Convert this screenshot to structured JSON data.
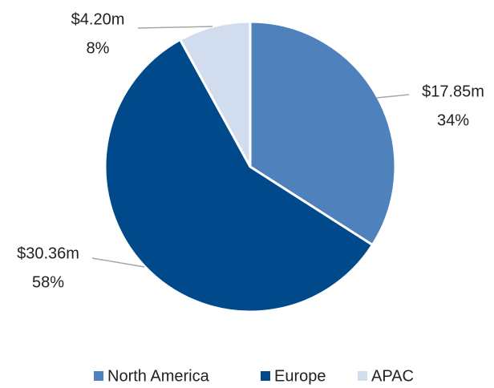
{
  "chart_data": {
    "type": "pie",
    "categories": [
      "North America",
      "Europe",
      "APAC"
    ],
    "values": [
      17.85,
      30.36,
      4.2
    ],
    "value_labels": [
      "$17.85m",
      "$30.36m",
      "$4.20m"
    ],
    "percent_labels": [
      "34%",
      "58%",
      "8%"
    ],
    "colors": [
      "#4f81bd",
      "#004a8c",
      "#d1dcef"
    ],
    "legend": "bottom"
  }
}
